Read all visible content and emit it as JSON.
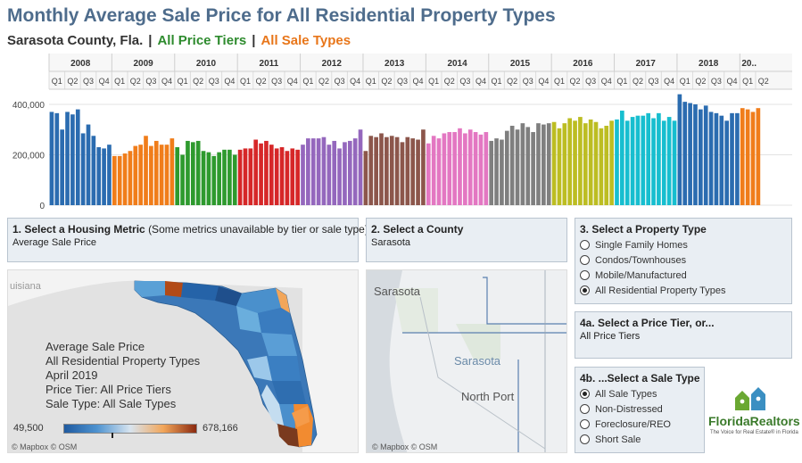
{
  "header": {
    "title": "Monthly Average Sale Price for All Residential Property Types",
    "county": "Sarasota County, Fla.",
    "separator": "|",
    "price_tier": "All Price Tiers",
    "sale_type": "All Sale Types",
    "colors": {
      "county": "#333333",
      "price_tier": "#2e8b2e",
      "sale_type": "#e8761a"
    }
  },
  "chart_data": {
    "type": "bar",
    "years": [
      "2008",
      "2009",
      "2010",
      "2011",
      "2012",
      "2013",
      "2014",
      "2015",
      "2016",
      "2017",
      "2018",
      "20.."
    ],
    "quarters": [
      "Q1",
      "Q2",
      "Q3",
      "Q4"
    ],
    "year_colors": [
      "#2b6cb0",
      "#f07d1a",
      "#2e9a2e",
      "#d62728",
      "#9467bd",
      "#8c564b",
      "#e377c2",
      "#7f7f7f",
      "#bcbd22",
      "#17becf",
      "#2b6cb0",
      "#f07d1a"
    ],
    "y_ticks": [
      "400,000",
      "200,000",
      "0"
    ],
    "ylim": [
      0,
      460000
    ],
    "values": [
      [
        370000,
        365000,
        300000,
        370000,
        360000,
        380000,
        285000,
        320000,
        275000,
        230000,
        225000,
        240000
      ],
      [
        195000,
        195000,
        205000,
        215000,
        235000,
        240000,
        275000,
        235000,
        255000,
        240000,
        240000,
        265000
      ],
      [
        230000,
        200000,
        255000,
        250000,
        255000,
        215000,
        210000,
        195000,
        210000,
        220000,
        220000,
        200000
      ],
      [
        220000,
        225000,
        225000,
        260000,
        245000,
        255000,
        240000,
        225000,
        230000,
        215000,
        225000,
        220000
      ],
      [
        240000,
        265000,
        265000,
        265000,
        270000,
        240000,
        255000,
        225000,
        250000,
        255000,
        265000,
        300000
      ],
      [
        215000,
        275000,
        270000,
        285000,
        270000,
        275000,
        270000,
        250000,
        270000,
        265000,
        260000,
        300000
      ],
      [
        245000,
        275000,
        265000,
        285000,
        290000,
        290000,
        305000,
        285000,
        300000,
        290000,
        280000,
        290000
      ],
      [
        255000,
        265000,
        260000,
        295000,
        315000,
        300000,
        325000,
        310000,
        290000,
        325000,
        320000,
        325000
      ],
      [
        330000,
        305000,
        325000,
        345000,
        335000,
        350000,
        325000,
        340000,
        330000,
        305000,
        315000,
        335000
      ],
      [
        340000,
        375000,
        335000,
        350000,
        355000,
        355000,
        365000,
        345000,
        365000,
        335000,
        350000,
        335000
      ],
      [
        440000,
        410000,
        405000,
        400000,
        380000,
        395000,
        370000,
        365000,
        355000,
        335000,
        365000,
        365000
      ],
      [
        385000,
        380000,
        370000,
        385000
      ]
    ]
  },
  "controls": {
    "metric": {
      "title": "1. Select a Housing Metric",
      "note": "(Some metrics unavailable by tier or sale type)",
      "value": "Average Sale Price"
    },
    "county": {
      "title": "2. Select a County",
      "value": "Sarasota"
    },
    "property_type": {
      "title": "3. Select a Property Type",
      "options": [
        "Single Family Homes",
        "Condos/Townhouses",
        "Mobile/Manufactured",
        "All Residential Property Types"
      ],
      "selected": 3
    },
    "price_tier": {
      "title": "4a. Select a Price Tier, or...",
      "value": "All Price Tiers"
    },
    "sale_type": {
      "title": "4b. ...Select a Sale Type",
      "options": [
        "All Sale Types",
        "Non-Distressed",
        "Foreclosure/REO",
        "Short Sale"
      ],
      "selected": 0
    }
  },
  "state_map": {
    "basemap_label": "uisiana",
    "legend_lines": [
      "Average Sale Price",
      "All Residential Property Types",
      "April 2019",
      "Price Tier: All Price Tiers",
      "Sale Type: All Sale Types"
    ],
    "scale_min": "49,500",
    "scale_max": "678,166",
    "credit": "© Mapbox © OSM"
  },
  "county_map": {
    "labels": {
      "city1": "Sarasota",
      "county": "Sarasota",
      "city2": "North Port"
    },
    "credit": "© Mapbox © OSM"
  },
  "logo": {
    "name": "FloridaRealtors",
    "tagline": "The Voice for Real Estate® in Florida"
  }
}
